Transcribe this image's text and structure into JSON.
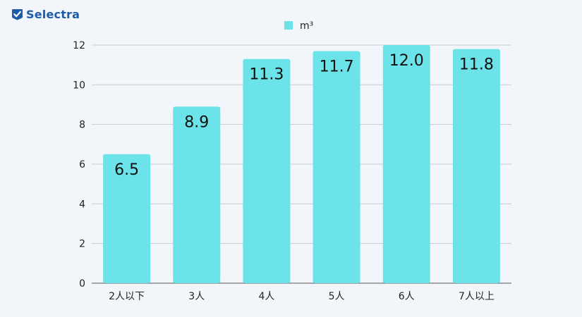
{
  "brand": {
    "name": "Selectra",
    "icon": "check-shield-icon",
    "color": "#1e5ba8"
  },
  "chart_data": {
    "type": "bar",
    "categories": [
      "2人以下",
      "3人",
      "4人",
      "5人",
      "6人",
      "7人以上"
    ],
    "series": [
      {
        "name": "m³",
        "values": [
          6.5,
          8.9,
          11.3,
          11.7,
          12.0,
          11.8
        ],
        "data_labels": [
          "6.5",
          "8.9",
          "11.3",
          "11.7",
          "12.0",
          "11.8"
        ],
        "color": "#6be3e8"
      }
    ],
    "y_ticks": [
      "0",
      "2",
      "4",
      "6",
      "8",
      "10",
      "12"
    ],
    "ylim": [
      0,
      12
    ],
    "grid": true,
    "legend_position": "top-center",
    "gridline_color": "#c3ccd4",
    "axis_line_color": "#555555"
  }
}
